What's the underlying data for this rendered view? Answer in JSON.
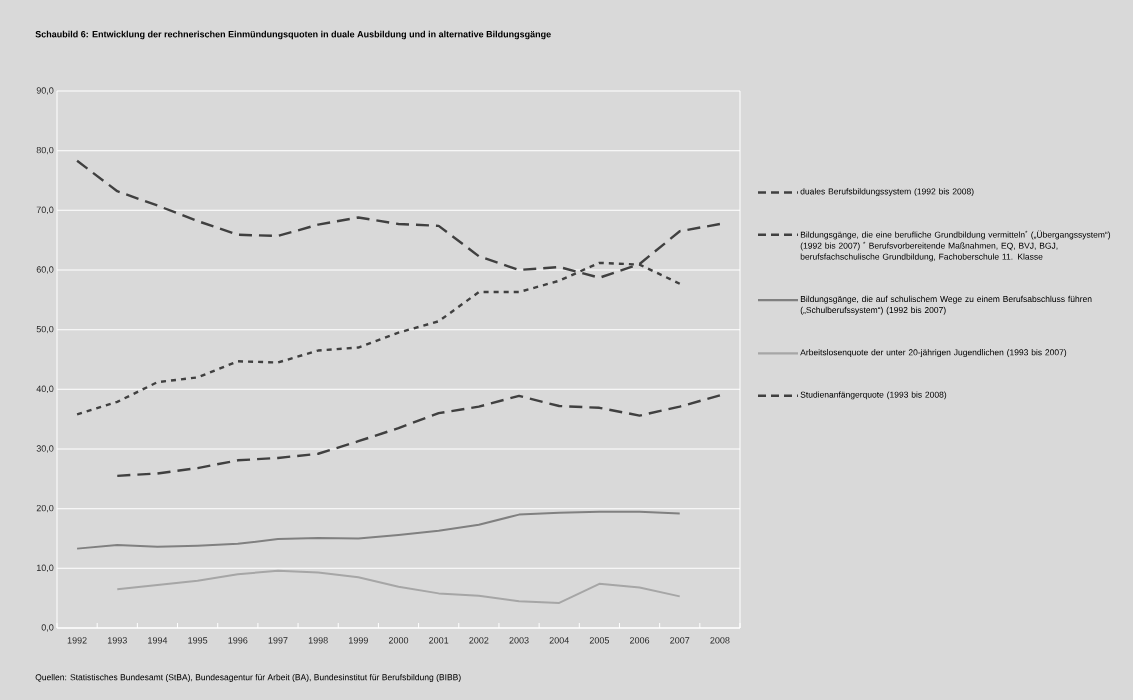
{
  "chart_data": {
    "type": "line",
    "title": "Schaubild 6: Entwicklung der rechnerischen Einmündungsquoten in duale Ausbildung und in alternative Bildungsgänge",
    "categories": [
      "1992",
      "1993",
      "1994",
      "1995",
      "1996",
      "1997",
      "1998",
      "1999",
      "2000",
      "2001",
      "2002",
      "2003",
      "2004",
      "2005",
      "2006",
      "2007",
      "2008"
    ],
    "series": [
      {
        "name": "duales Berufsbildungssystem (1992 bis 2008)",
        "color": "#404040",
        "line_style": "dashed",
        "values": [
          78.3,
          73.2,
          70.8,
          68.2,
          65.9,
          65.7,
          67.6,
          68.8,
          67.7,
          67.4,
          62.3,
          60.0,
          60.5,
          58.7,
          61.0,
          66.5,
          67.7
        ]
      },
      {
        "name": "Bildungsgänge, die eine berufliche Grundbildung vermitteln$^{*}$ („Übergangssystem“) (1992 bis 2007) $^{*}$ Berufsvorbereitende Maßnahmen, EQ, BVJ, BGJ, berufsfachschulische Grundbildung, Fachoberschule 11. Klasse",
        "color": "#404040",
        "line_style": "dotted",
        "values": [
          35.8,
          37.9,
          41.2,
          42.0,
          44.7,
          44.5,
          46.5,
          47.0,
          49.5,
          51.4,
          56.3,
          56.3,
          58.2,
          61.2,
          60.9,
          57.7,
          null
        ]
      },
      {
        "name": "Bildungsgänge, die auf schulischem Wege zu einem Berufsabschluss führen („Schulberufssystem“) (1992 bis 2007)",
        "color": "#808080",
        "line_style": "solid",
        "values": [
          13.3,
          13.9,
          13.6,
          13.8,
          14.1,
          14.9,
          15.1,
          15.0,
          15.6,
          16.3,
          17.3,
          19.0,
          19.3,
          19.5,
          19.5,
          19.2,
          null
        ]
      },
      {
        "name": "Arbeitslosenquote der unter 20-jährigen Jugendlichen (1993 bis 2007)",
        "color": "#a6a6a6",
        "line_style": "solid",
        "values": [
          null,
          6.5,
          7.2,
          7.9,
          9.0,
          9.6,
          9.3,
          8.5,
          6.9,
          5.8,
          5.4,
          4.5,
          4.2,
          7.4,
          6.8,
          5.3,
          null
        ]
      },
      {
        "name": "Studienanfängerquote (1993 bis 2008)",
        "color": "#404040",
        "line_style": "dashed",
        "values": [
          null,
          25.5,
          25.9,
          26.8,
          28.1,
          28.5,
          29.2,
          31.3,
          33.5,
          36.0,
          37.1,
          38.9,
          37.2,
          36.9,
          35.6,
          37.1,
          39.0
        ]
      }
    ],
    "ylim": [
      0,
      90
    ],
    "yticks": [
      {
        "value": 0,
        "label": "0,0"
      },
      {
        "value": 10,
        "label": "10,0"
      },
      {
        "value": 20,
        "label": "20,0"
      },
      {
        "value": 30,
        "label": "30,0"
      },
      {
        "value": 40,
        "label": "40,0"
      },
      {
        "value": 50,
        "label": "50,0"
      },
      {
        "value": 60,
        "label": "60,0"
      },
      {
        "value": 70,
        "label": "70,0"
      },
      {
        "value": 80,
        "label": "80,0"
      },
      {
        "value": 90,
        "label": "90,0"
      }
    ],
    "grid": "y",
    "legend": "right",
    "annotations": [
      "Quellen: Statistisches Bundesamt (StBA), Bundesagentur für Arbeit (BA), Bundesinstitut für Berufsbildung (BIBB)"
    ]
  }
}
